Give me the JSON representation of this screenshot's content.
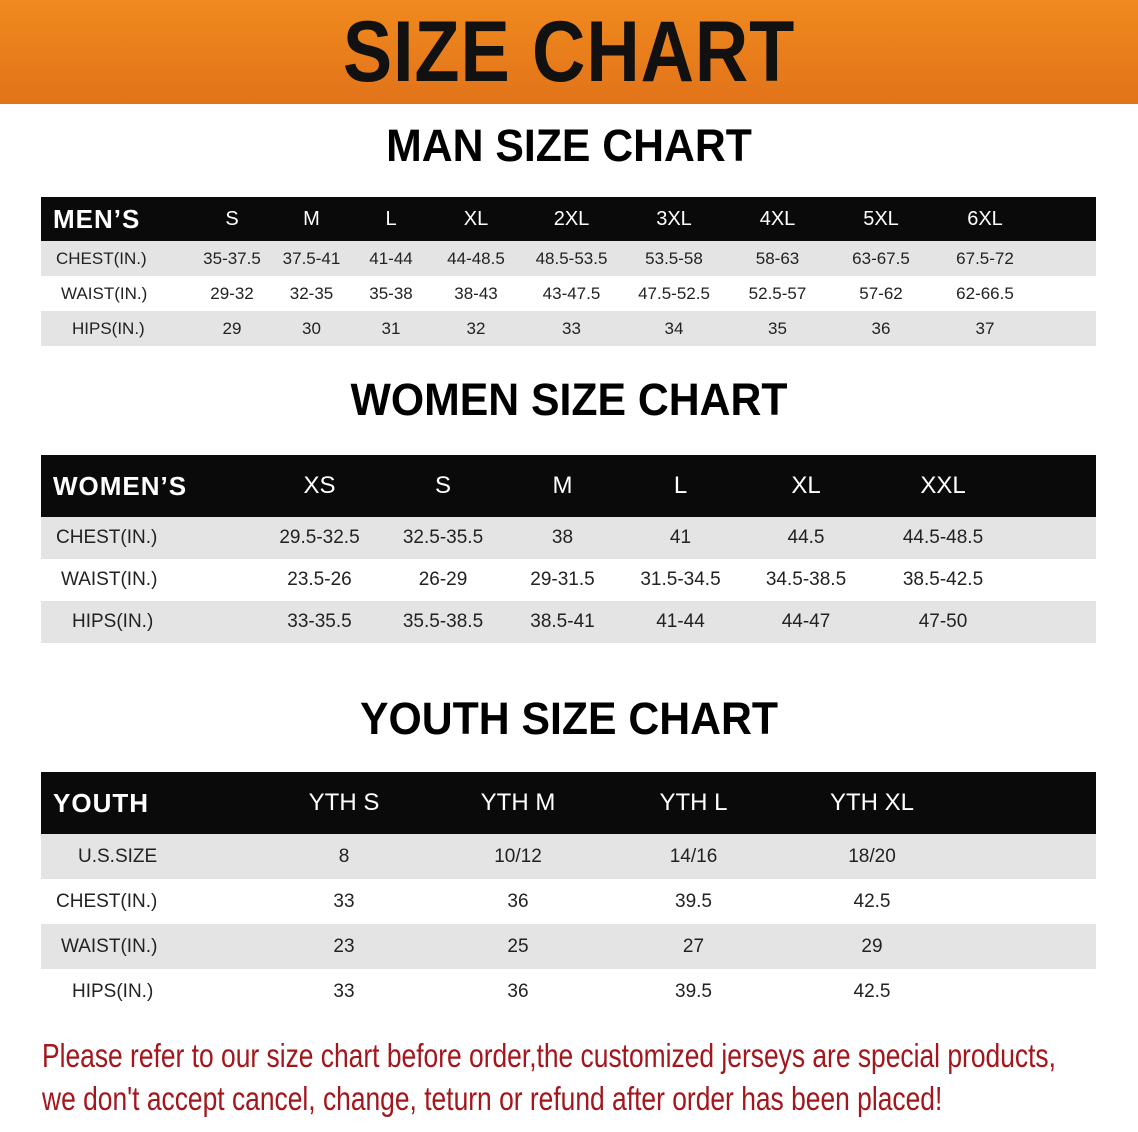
{
  "banner": {
    "title": "SIZE CHART",
    "color": "#e97d1c"
  },
  "men": {
    "title": "MAN SIZE CHART",
    "headers": [
      "MEN’S",
      "S",
      "M",
      "L",
      "XL",
      "2XL",
      "3XL",
      "4XL",
      "5XL",
      "6XL"
    ],
    "rows": [
      [
        "CHEST(IN.)",
        "35-37.5",
        "37.5-41",
        "41-44",
        "44-48.5",
        "48.5-53.5",
        "53.5-58",
        "58-63",
        "63-67.5",
        "67.5-72"
      ],
      [
        "WAIST(IN.)",
        "29-32",
        "32-35",
        "35-38",
        "38-43",
        "43-47.5",
        "47.5-52.5",
        "52.5-57",
        "57-62",
        "62-66.5"
      ],
      [
        "HIPS(IN.)",
        "29",
        "30",
        "31",
        "32",
        "33",
        "34",
        "35",
        "36",
        "37"
      ]
    ]
  },
  "women": {
    "title": "WOMEN SIZE CHART",
    "headers": [
      "WOMEN’S",
      "XS",
      "S",
      "M",
      "L",
      "XL",
      "XXL"
    ],
    "rows": [
      [
        "CHEST(IN.)",
        "29.5-32.5",
        "32.5-35.5",
        "38",
        "41",
        "44.5",
        "44.5-48.5"
      ],
      [
        "WAIST(IN.)",
        "23.5-26",
        "26-29",
        "29-31.5",
        "31.5-34.5",
        "34.5-38.5",
        "38.5-42.5"
      ],
      [
        "HIPS(IN.)",
        "33-35.5",
        "35.5-38.5",
        "38.5-41",
        "41-44",
        "44-47",
        "47-50"
      ]
    ]
  },
  "youth": {
    "title": "YOUTH SIZE CHART",
    "headers": [
      "YOUTH",
      "YTH S",
      "YTH M",
      "YTH L",
      "YTH XL"
    ],
    "rows": [
      [
        "U.S.SIZE",
        "8",
        "10/12",
        "14/16",
        "18/20"
      ],
      [
        "CHEST(IN.)",
        "33",
        "36",
        "39.5",
        "42.5"
      ],
      [
        "WAIST(IN.)",
        "23",
        "25",
        "27",
        "29"
      ],
      [
        "HIPS(IN.)",
        "33",
        "36",
        "39.5",
        "42.5"
      ]
    ]
  },
  "note": {
    "line1": "Please refer to our size chart before order,the customized jerseys are special products,",
    "line2": "we don't accept cancel, change, teturn or refund after order has been placed!",
    "color": "#a3161c"
  }
}
